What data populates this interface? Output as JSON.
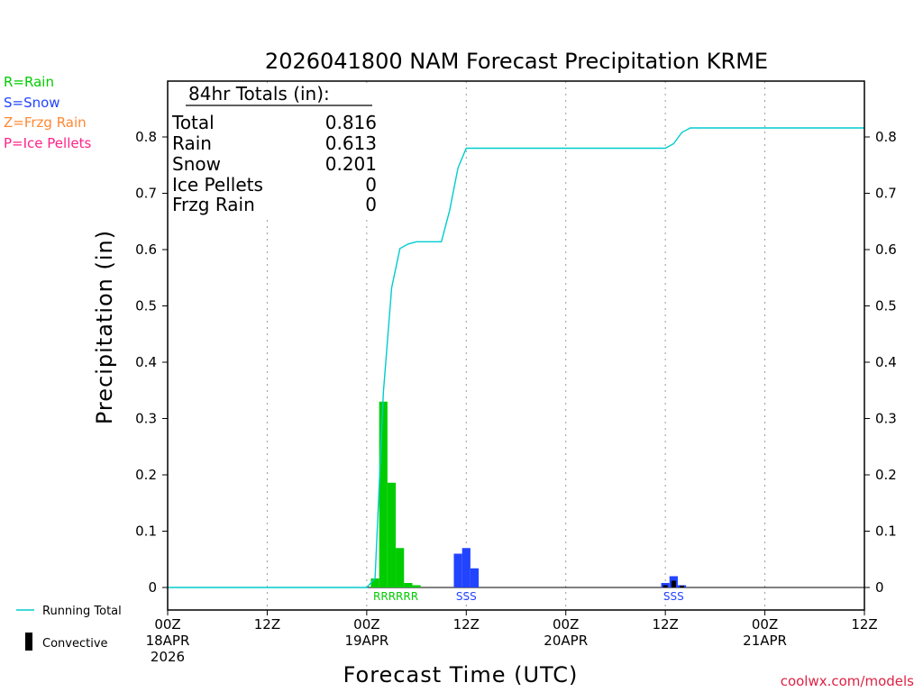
{
  "chart_data": {
    "type": "bar",
    "title": "2026041800 NAM Forecast Precipitation KRME",
    "xlabel": "Forecast Time (UTC)",
    "ylabel": "Precipitation (in)",
    "ylim": [
      -0.04,
      0.9
    ],
    "xlim_hours": [
      0,
      84
    ],
    "yticks": [
      "0",
      "0.1",
      "0.2",
      "0.3",
      "0.4",
      "0.5",
      "0.6",
      "0.7",
      "0.8"
    ],
    "xticks": [
      {
        "hour": 0,
        "lines": [
          "00Z",
          "18APR",
          "2026"
        ]
      },
      {
        "hour": 12,
        "lines": [
          "12Z"
        ]
      },
      {
        "hour": 24,
        "lines": [
          "00Z",
          "19APR"
        ]
      },
      {
        "hour": 36,
        "lines": [
          "12Z"
        ]
      },
      {
        "hour": 48,
        "lines": [
          "00Z",
          "20APR"
        ]
      },
      {
        "hour": 60,
        "lines": [
          "12Z"
        ]
      },
      {
        "hour": 72,
        "lines": [
          "00Z",
          "21APR"
        ]
      },
      {
        "hour": 84,
        "lines": [
          "12Z"
        ]
      }
    ],
    "grid": "vertical dotted at 12-hour ticks",
    "series": [
      {
        "name": "Rain",
        "color": "#00cc00",
        "hours": [
          25,
          26,
          27,
          28,
          29,
          30
        ],
        "values": [
          0.016,
          0.33,
          0.186,
          0.07,
          0.008,
          0.004
        ]
      },
      {
        "name": "Snow",
        "color": "#2244ff",
        "hours": [
          35,
          36,
          37
        ],
        "values": [
          0.06,
          0.07,
          0.034
        ]
      },
      {
        "name": "Snow",
        "color": "#2244ff",
        "hours": [
          60,
          61,
          62
        ],
        "values": [
          0.008,
          0.02,
          0.004
        ]
      },
      {
        "name": "Convective",
        "color": "#000000",
        "hours": [
          60,
          61,
          62
        ],
        "values": [
          0.004,
          0.012,
          0.003
        ]
      }
    ],
    "running_total": {
      "name": "Running Total",
      "color": "#00cccc",
      "points": [
        [
          0,
          0
        ],
        [
          24,
          0
        ],
        [
          25,
          0.016
        ],
        [
          26,
          0.346
        ],
        [
          27,
          0.532
        ],
        [
          28,
          0.602
        ],
        [
          29,
          0.61
        ],
        [
          30,
          0.614
        ],
        [
          32,
          0.614
        ],
        [
          33,
          0.614
        ],
        [
          34,
          0.67
        ],
        [
          35,
          0.745
        ],
        [
          36,
          0.78
        ],
        [
          60,
          0.78
        ],
        [
          61,
          0.788
        ],
        [
          62,
          0.808
        ],
        [
          63,
          0.816
        ],
        [
          84,
          0.816
        ]
      ]
    },
    "precip_type_labels": [
      {
        "text": "RRRRRR",
        "color": "#00cc00",
        "hour": 27.5
      },
      {
        "text": "SSS",
        "color": "#2244ff",
        "hour": 36
      },
      {
        "text": "SSS",
        "color": "#2244ff",
        "hour": 61
      }
    ],
    "totals_box": {
      "heading": "84hr Totals (in):",
      "rows": [
        {
          "label": "Total",
          "value": "0.816"
        },
        {
          "label": "Rain",
          "value": "0.613"
        },
        {
          "label": "Snow",
          "value": "0.201"
        },
        {
          "label": "Ice Pellets",
          "value": "0"
        },
        {
          "label": "Frzg Rain",
          "value": "0"
        }
      ]
    }
  },
  "legend_types": [
    {
      "text": "R=Rain",
      "color": "#00cc00"
    },
    {
      "text": "S=Snow",
      "color": "#2244ff"
    },
    {
      "text": "Z=Frzg Rain",
      "color": "#ff8833"
    },
    {
      "text": "P=Ice Pellets",
      "color": "#ff2288"
    }
  ],
  "legend_bottom": {
    "running_total_label": "Running Total",
    "convective_label": "Convective"
  },
  "credit": "coolwx.com/models"
}
